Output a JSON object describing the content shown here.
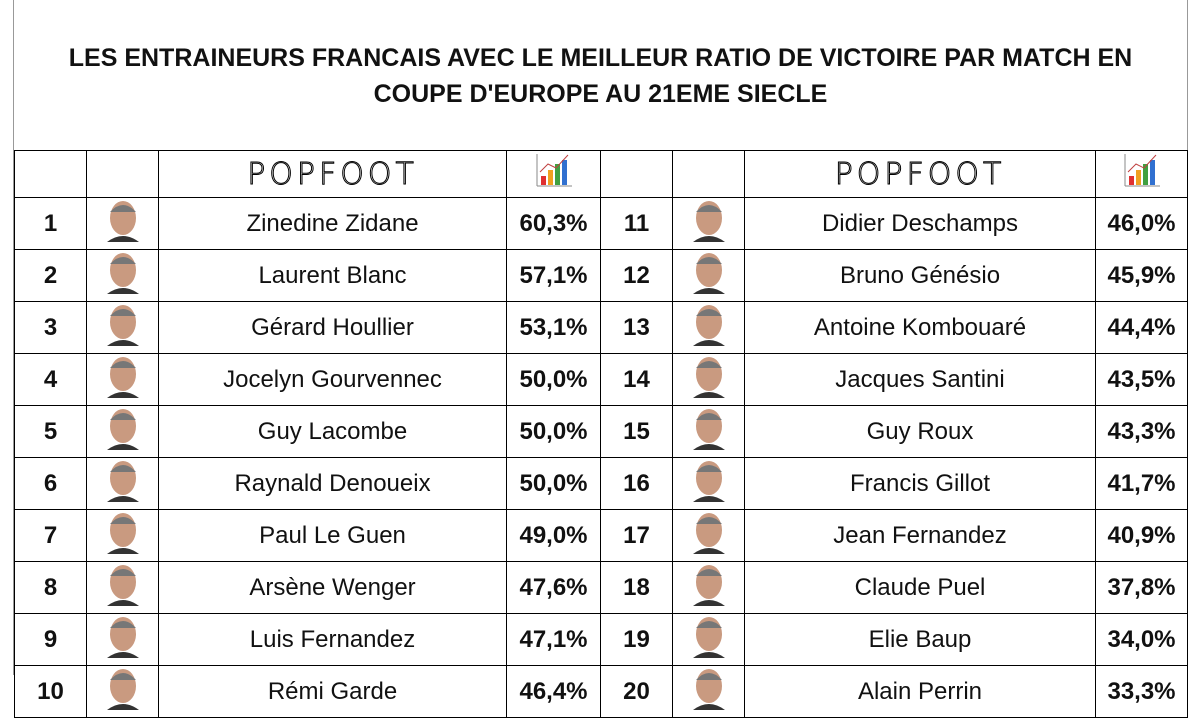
{
  "header": {
    "title": "LES ENTRAINEURS FRANCAIS AVEC LE MEILLEUR RATIO DE VICTOIRE PAR MATCH EN COUPE D'EUROPE AU 21EME SIECLE",
    "brand": "POPFOOT"
  },
  "table": {
    "columns": [
      {
        "rows": [
          {
            "rank": "1",
            "name": "Zinedine Zidane",
            "ratio": "60,3%"
          },
          {
            "rank": "2",
            "name": "Laurent Blanc",
            "ratio": "57,1%"
          },
          {
            "rank": "3",
            "name": "Gérard Houllier",
            "ratio": "53,1%"
          },
          {
            "rank": "4",
            "name": "Jocelyn Gourvennec",
            "ratio": "50,0%"
          },
          {
            "rank": "5",
            "name": "Guy Lacombe",
            "ratio": "50,0%"
          },
          {
            "rank": "6",
            "name": "Raynald Denoueix",
            "ratio": "50,0%"
          },
          {
            "rank": "7",
            "name": "Paul Le Guen",
            "ratio": "49,0%"
          },
          {
            "rank": "8",
            "name": "Arsène Wenger",
            "ratio": "47,6%"
          },
          {
            "rank": "9",
            "name": "Luis Fernandez",
            "ratio": "47,1%"
          },
          {
            "rank": "10",
            "name": "Rémi Garde",
            "ratio": "46,4%"
          }
        ]
      },
      {
        "rows": [
          {
            "rank": "11",
            "name": "Didier Deschamps",
            "ratio": "46,0%"
          },
          {
            "rank": "12",
            "name": "Bruno Génésio",
            "ratio": "45,9%"
          },
          {
            "rank": "13",
            "name": "Antoine Kombouaré",
            "ratio": "44,4%"
          },
          {
            "rank": "14",
            "name": "Jacques Santini",
            "ratio": "43,5%"
          },
          {
            "rank": "15",
            "name": "Guy Roux",
            "ratio": "43,3%"
          },
          {
            "rank": "16",
            "name": "Francis Gillot",
            "ratio": "41,7%"
          },
          {
            "rank": "17",
            "name": "Jean Fernandez",
            "ratio": "40,9%"
          },
          {
            "rank": "18",
            "name": "Claude Puel",
            "ratio": "37,8%"
          },
          {
            "rank": "19",
            "name": "Elie Baup",
            "ratio": "34,0%"
          },
          {
            "rank": "20",
            "name": "Alain Perrin",
            "ratio": "33,3%"
          }
        ]
      }
    ]
  }
}
